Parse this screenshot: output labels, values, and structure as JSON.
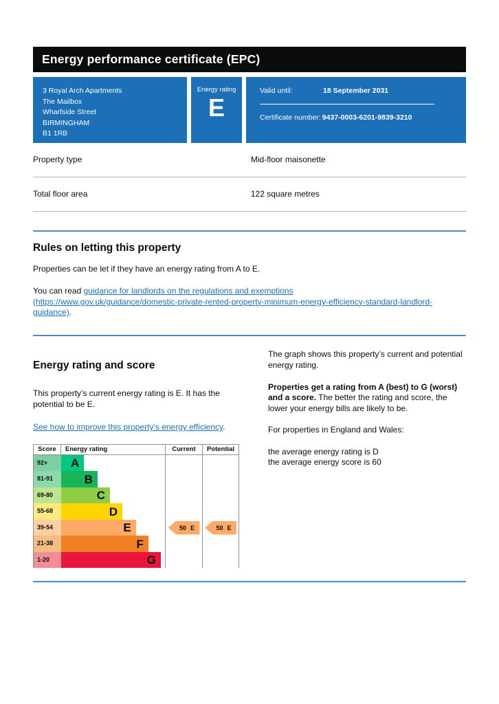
{
  "theme": {
    "brand_blue": "#1d70b8",
    "banner_black": "#0b0c0c",
    "divider_blue": "#4a8bc9",
    "divider_grey": "#b1b4b6",
    "link_blue": "#1d70b8"
  },
  "page": {
    "title": "Energy performance certificate (EPC)"
  },
  "summary": {
    "address_lines": [
      "3 Royal Arch Apartments",
      "The Mailbox",
      "Wharfside Street",
      "BIRMINGHAM",
      "B1 1RB"
    ],
    "energy_rating_label": "Energy rating",
    "energy_rating": "E",
    "valid_until_label": "Valid until:",
    "valid_until": "18 September 2031",
    "certificate_number_label": "Certificate number:",
    "certificate_number": "9437-0003-6201-9839-3210"
  },
  "property_facts": [
    {
      "label": "Property type",
      "value": "Mid-floor maisonette"
    },
    {
      "label": "Total floor area",
      "value": "122 square metres"
    }
  ],
  "rules_section": {
    "heading": "Rules on letting this property",
    "para1": "Properties can be let if they have an energy rating from A to E.",
    "para2_prefix": "You can read ",
    "link_text": "guidance for landlords on the regulations and exemptions (https://www.gov.uk/guidance/domestic-private-rented-property-minimum-energy-efficiency-standard-landlord-guidance)",
    "para2_suffix": "."
  },
  "rating_section": {
    "heading": "Energy rating and score",
    "para1": "This property’s current energy rating is E. It has the potential to be E.",
    "link_text": "See how to improve this property’s energy efficiency",
    "link_suffix": ".",
    "right_para1": "The graph shows this property’s current and potential energy rating.",
    "right_para2_bold": "Properties get a rating from A (best) to G (worst) and a score.",
    "right_para2_rest": " The better the rating and score, the lower your energy bills are likely to be.",
    "right_para3": "For properties in England and Wales:",
    "right_line1": "the average energy rating is D",
    "right_line2": "the average energy score is 60"
  },
  "chart_data": {
    "type": "bar",
    "title": "Energy rating and score graph",
    "legend_position": "none",
    "columns": [
      "Score",
      "Energy rating",
      "Current",
      "Potential"
    ],
    "bands": [
      {
        "score_range": "92+",
        "rating": "A",
        "bar_color": "#00c781",
        "score_cell_color": "#7bcfa3",
        "bar_width_pct": 22
      },
      {
        "score_range": "81-91",
        "rating": "B",
        "bar_color": "#19b459",
        "score_cell_color": "#8ed9ab",
        "bar_width_pct": 35
      },
      {
        "score_range": "69-80",
        "rating": "C",
        "bar_color": "#8dce46",
        "score_cell_color": "#c0e38f",
        "bar_width_pct": 47
      },
      {
        "score_range": "55-68",
        "rating": "D",
        "bar_color": "#ffd500",
        "score_cell_color": "#ffe981",
        "bar_width_pct": 59
      },
      {
        "score_range": "39-54",
        "rating": "E",
        "bar_color": "#fcaa65",
        "score_cell_color": "#fdd0a1",
        "bar_width_pct": 72
      },
      {
        "score_range": "21-38",
        "rating": "F",
        "bar_color": "#ef8023",
        "score_cell_color": "#f5bc84",
        "bar_width_pct": 84
      },
      {
        "score_range": "1-20",
        "rating": "G",
        "bar_color": "#e9153b",
        "score_cell_color": "#f28c96",
        "bar_width_pct": 96
      }
    ],
    "current": {
      "score": "50",
      "rating": "E",
      "arrow_color": "#fcaa65"
    },
    "potential": {
      "score": "50",
      "rating": "E",
      "arrow_color": "#fcaa65"
    }
  }
}
